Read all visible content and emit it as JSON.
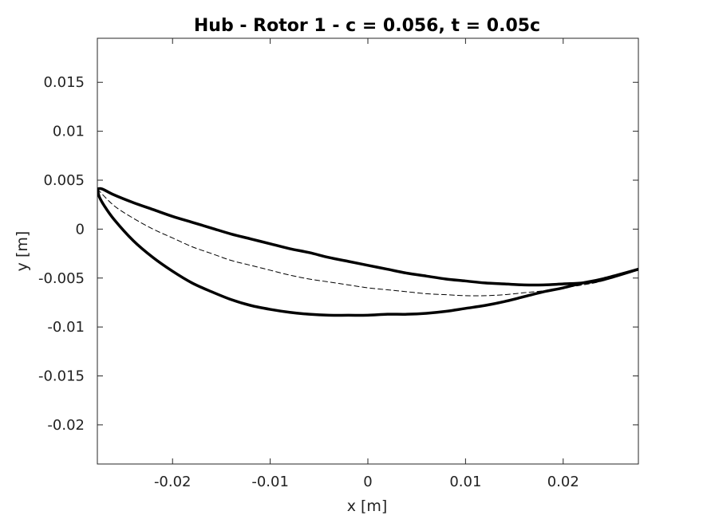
{
  "chart_data": {
    "type": "line",
    "title": "Hub - Rotor 1  - c = 0.056, t = 0.05c",
    "xlabel": "x [m]",
    "ylabel": "y [m]",
    "xlim": [
      -0.0277,
      0.0277
    ],
    "ylim": [
      -0.024,
      0.0195
    ],
    "grid": false,
    "xticks": [
      -0.02,
      -0.01,
      0,
      0.01,
      0.02
    ],
    "xtick_labels": [
      "-0.02",
      "-0.01",
      "0",
      "0.01",
      "0.02"
    ],
    "yticks": [
      0.015,
      0.01,
      0.005,
      0,
      -0.005,
      -0.01,
      -0.015,
      -0.02
    ],
    "ytick_labels": [
      "0.015",
      "0.01",
      "0.005",
      "0",
      "-0.005",
      "-0.01",
      "-0.015",
      "-0.02"
    ],
    "series": [
      {
        "style": "solid-thick",
        "color": "#000000",
        "x": [
          -0.0277,
          -0.0272,
          -0.026,
          -0.024,
          -0.022,
          -0.02,
          -0.018,
          -0.016,
          -0.014,
          -0.012,
          -0.01,
          -0.008,
          -0.006,
          -0.004,
          -0.002,
          0.0,
          0.002,
          0.004,
          0.006,
          0.008,
          0.01,
          0.012,
          0.014,
          0.016,
          0.018,
          0.02,
          0.022,
          0.024,
          0.0277
        ],
        "y": [
          0.0041,
          0.0041,
          0.0035,
          0.0027,
          0.002,
          0.0013,
          0.0007,
          0.0001,
          -0.0005,
          -0.001,
          -0.0015,
          -0.002,
          -0.0024,
          -0.0029,
          -0.0033,
          -0.0037,
          -0.0041,
          -0.0045,
          -0.0048,
          -0.0051,
          -0.0053,
          -0.0055,
          -0.0056,
          -0.0057,
          -0.0057,
          -0.0056,
          -0.0055,
          -0.0052,
          -0.0041
        ]
      },
      {
        "style": "solid-thick",
        "color": "#000000",
        "x": [
          -0.0277,
          -0.0275,
          -0.027,
          -0.026,
          -0.024,
          -0.022,
          -0.02,
          -0.018,
          -0.016,
          -0.014,
          -0.012,
          -0.01,
          -0.008,
          -0.006,
          -0.004,
          -0.002,
          0.0,
          0.002,
          0.004,
          0.006,
          0.008,
          0.01,
          0.012,
          0.014,
          0.016,
          0.018,
          0.02,
          0.022,
          0.024,
          0.0277
        ],
        "y": [
          0.0041,
          0.0033,
          0.0024,
          0.001,
          -0.0012,
          -0.0029,
          -0.0043,
          -0.0055,
          -0.0064,
          -0.0072,
          -0.0078,
          -0.0082,
          -0.0085,
          -0.0087,
          -0.0088,
          -0.0088,
          -0.0088,
          -0.0087,
          -0.0087,
          -0.0086,
          -0.0084,
          -0.0081,
          -0.0078,
          -0.0074,
          -0.0069,
          -0.0064,
          -0.006,
          -0.0055,
          -0.0051,
          -0.0041
        ]
      },
      {
        "style": "dashed-thin",
        "color": "#000000",
        "x": [
          -0.0277,
          -0.026,
          -0.024,
          -0.022,
          -0.02,
          -0.018,
          -0.016,
          -0.014,
          -0.012,
          -0.01,
          -0.008,
          -0.006,
          -0.004,
          -0.002,
          0.0,
          0.002,
          0.004,
          0.006,
          0.008,
          0.01,
          0.012,
          0.014,
          0.016,
          0.018,
          0.02,
          0.022,
          0.024,
          0.0277
        ],
        "y": [
          0.0041,
          0.0024,
          0.0011,
          0.0,
          -0.0009,
          -0.0018,
          -0.0025,
          -0.0032,
          -0.0037,
          -0.0042,
          -0.0047,
          -0.0051,
          -0.0054,
          -0.0057,
          -0.006,
          -0.0062,
          -0.0064,
          -0.0066,
          -0.0067,
          -0.0068,
          -0.0068,
          -0.0067,
          -0.0065,
          -0.0063,
          -0.006,
          -0.0057,
          -0.0053,
          -0.0041
        ]
      }
    ]
  }
}
